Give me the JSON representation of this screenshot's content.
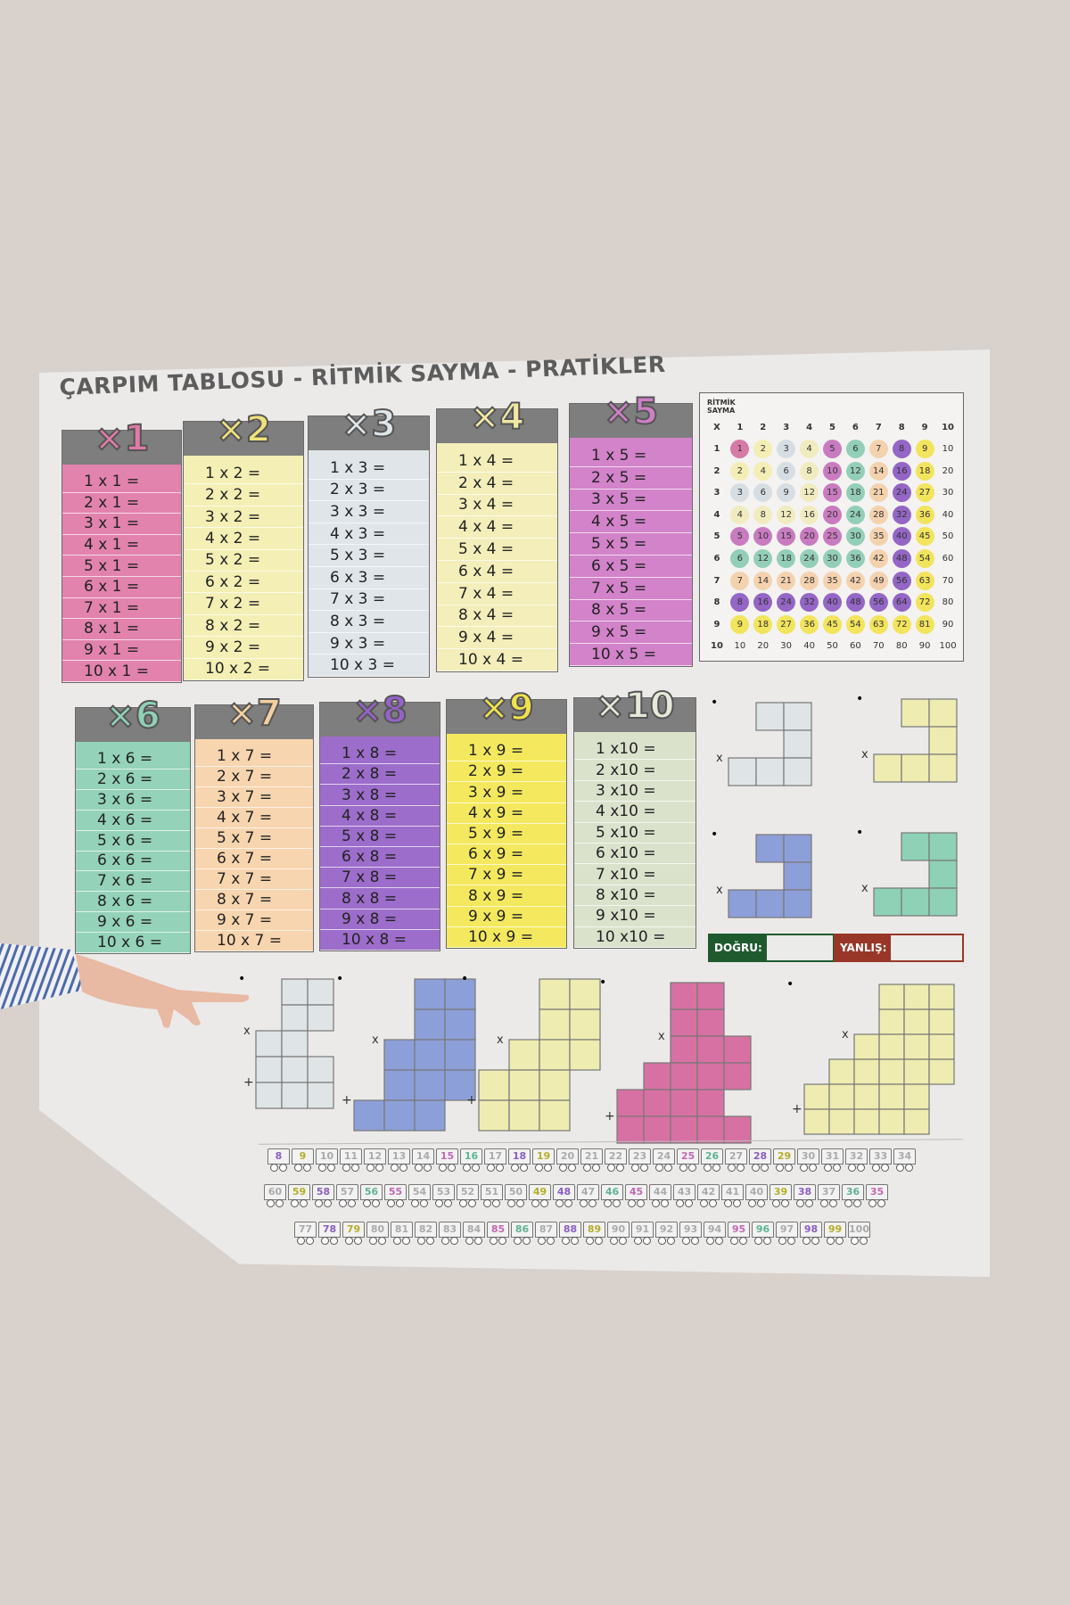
{
  "poster": {
    "title": "ÇARPIM TABLOSU - RİTMİK SAYMA - PRATİKLER",
    "tables": [
      {
        "label": "×1",
        "color": "#e283ad",
        "head": "#e07aa8",
        "rows": [
          "1 x 1 =",
          "2 x 1 =",
          "3 x 1 =",
          "4 x 1 =",
          "5 x 1 =",
          "6 x 1 =",
          "7 x 1 =",
          "8 x 1 =",
          "9 x 1 =",
          "10 x 1 ="
        ]
      },
      {
        "label": "×2",
        "color": "#f4efb4",
        "head": "#efe27a",
        "rows": [
          "1 x 2 =",
          "2 x 2 =",
          "3 x 2 =",
          "4 x 2 =",
          "5 x 2 =",
          "6 x 2 =",
          "7 x 2 =",
          "8 x 2 =",
          "9 x 2 =",
          "10 x 2 ="
        ]
      },
      {
        "label": "×3",
        "color": "#dfe5e9",
        "head": "#dfe6ea",
        "rows": [
          "1 x 3 =",
          "2 x 3 =",
          "3 x 3 =",
          "4 x 3 =",
          "5 x 3 =",
          "6 x 3 =",
          "7 x 3 =",
          "8 x 3 =",
          "9 x 3 =",
          "10 x 3 ="
        ]
      },
      {
        "label": "×4",
        "color": "#f3eeba",
        "head": "#f1e9a4",
        "rows": [
          "1 x 4 =",
          "2 x 4 =",
          "3 x 4 =",
          "4 x 4 =",
          "5 x 4 =",
          "6 x 4 =",
          "7 x 4 =",
          "8 x 4 =",
          "9 x 4 =",
          "10 x 4 ="
        ]
      },
      {
        "label": "×5",
        "color": "#d283c9",
        "head": "#cf7fc6",
        "rows": [
          "1 x 5 =",
          "2 x 5 =",
          "3 x 5 =",
          "4 x 5 =",
          "5 x 5 =",
          "6 x 5 =",
          "7 x 5 =",
          "8 x 5 =",
          "9 x 5 =",
          "10 x 5 ="
        ]
      },
      {
        "label": "×6",
        "color": "#94d2ba",
        "head": "#8fd0b7",
        "rows": [
          "1 x 6 =",
          "2 x 6 =",
          "3 x 6 =",
          "4 x 6 =",
          "5 x 6 =",
          "6 x 6 =",
          "7 x 6 =",
          "8 x 6 =",
          "9 x 6 =",
          "10 x 6 ="
        ]
      },
      {
        "label": "×7",
        "color": "#f7d5af",
        "head": "#f5cf9f",
        "rows": [
          "1 x 7 =",
          "2 x 7 =",
          "3 x 7 =",
          "4 x 7 =",
          "5 x 7 =",
          "6 x 7 =",
          "7 x 7 =",
          "8 x 7 =",
          "9 x 7 =",
          "10 x 7 ="
        ]
      },
      {
        "label": "×8",
        "color": "#9c6dca",
        "head": "#9662c8",
        "rows": [
          "1 x 8 =",
          "2 x 8 =",
          "3 x 8 =",
          "4 x 8 =",
          "5 x 8 =",
          "6 x 8 =",
          "7 x 8 =",
          "8 x 8 =",
          "9 x 8 =",
          "10 x 8 ="
        ]
      },
      {
        "label": "×9",
        "color": "#f4e95e",
        "head": "#f2e24a",
        "rows": [
          "1 x 9 =",
          "2 x 9 =",
          "3 x 9 =",
          "4 x 9 =",
          "5 x 9 =",
          "6 x 9 =",
          "7 x 9 =",
          "8 x 9 =",
          "9 x 9 =",
          "10 x 9 ="
        ]
      },
      {
        "label": "×10",
        "color": "#dbe2cc",
        "head": "#e4e9d8",
        "rows": [
          "1 x10 =",
          "2 x10 =",
          "3 x10 =",
          "4 x10 =",
          "5 x10 =",
          "6 x10 =",
          "7 x10 =",
          "8 x10 =",
          "9 x10 =",
          "10 x10 ="
        ]
      }
    ],
    "rhythm": {
      "title_line1": "RİTMİK",
      "title_line2": "SAYMA",
      "corner": "X",
      "palette": [
        "#d67aa6",
        "#f3eeb5",
        "#d7dee3",
        "#f1ecc0",
        "#c97bc0",
        "#93cfb8",
        "#f4d2ae",
        "#9466c5",
        "#f2e45c"
      ]
    },
    "exercises": {
      "times_sign": "x",
      "plus_sign": "+",
      "dot": "•",
      "colors": {
        "grey": "#dfe5e6",
        "yellow": "#eeecb0",
        "blue": "#8d9fd8",
        "green": "#8fd1b6",
        "pink": "#d771a3"
      }
    },
    "score": {
      "correct_label": "DOĞRU:",
      "wrong_label": "YANLIŞ:",
      "correct_color": "#1f5a2f",
      "wrong_color": "#983627"
    },
    "trains": [
      [
        8,
        9,
        10,
        11,
        12,
        13,
        14,
        15,
        16,
        17,
        18,
        19,
        20,
        21,
        22,
        23,
        24,
        25,
        26,
        27,
        28,
        29,
        30,
        31,
        32,
        33,
        34
      ],
      [
        60,
        59,
        58,
        57,
        56,
        55,
        54,
        53,
        52,
        51,
        50,
        49,
        48,
        47,
        46,
        45,
        44,
        43,
        42,
        41,
        40,
        39,
        38,
        37,
        36,
        35
      ],
      [
        77,
        78,
        79,
        80,
        81,
        82,
        83,
        84,
        85,
        86,
        87,
        88,
        89,
        90,
        91,
        92,
        93,
        94,
        95,
        96,
        97,
        98,
        99,
        100
      ]
    ]
  }
}
